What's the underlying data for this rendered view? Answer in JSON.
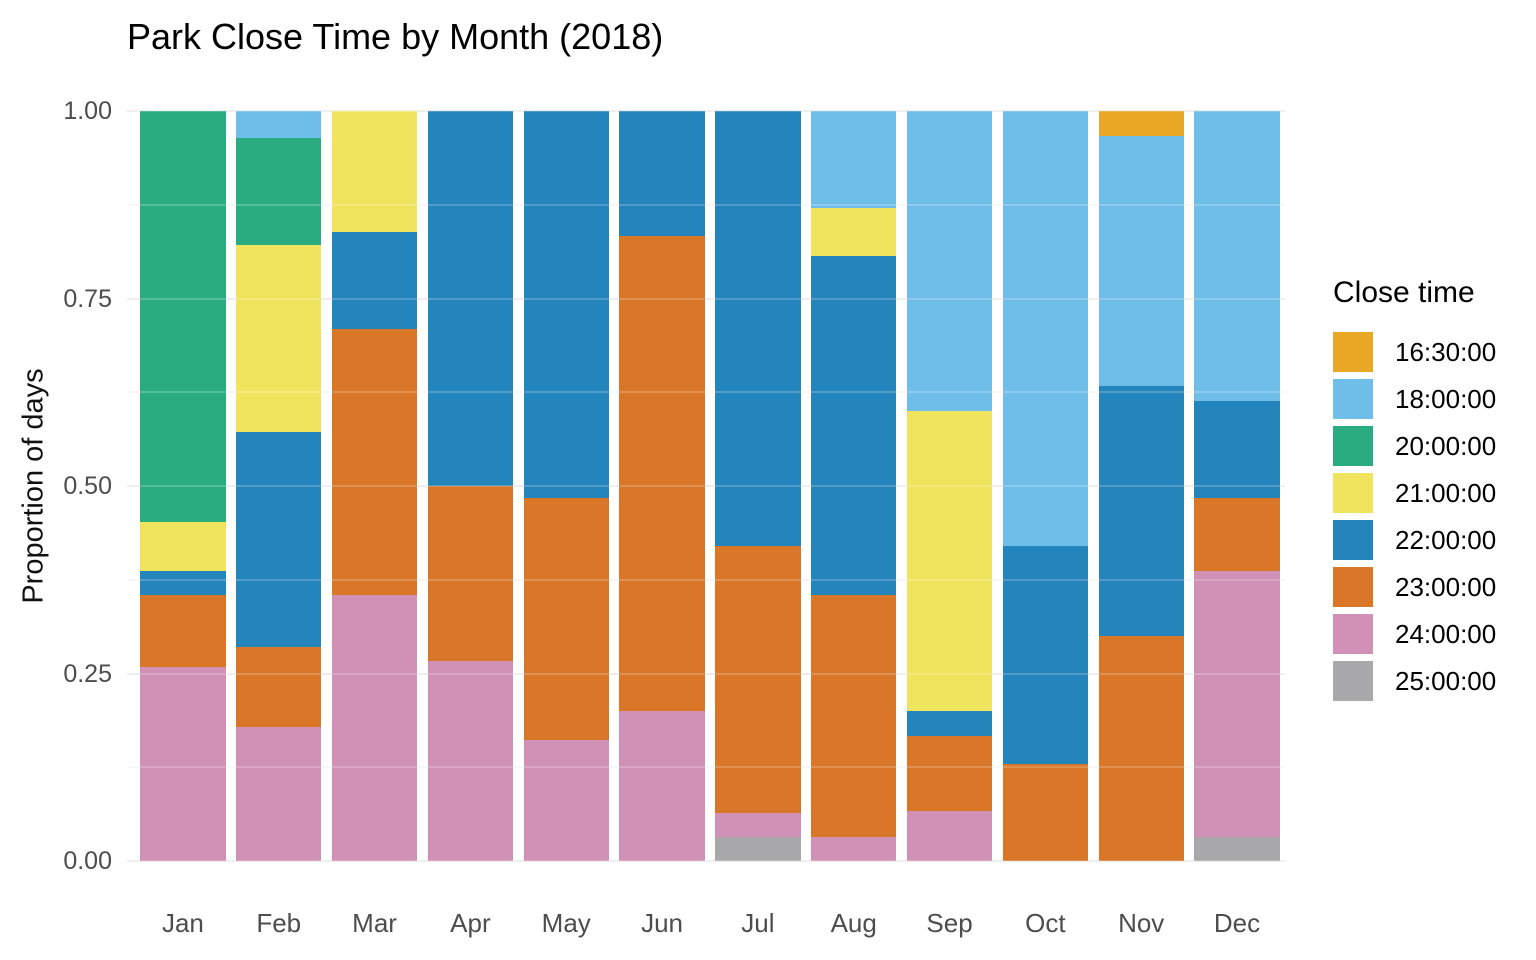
{
  "title": "Park Close Time by Month (2018)",
  "y_axis": {
    "label": "Proportion of days",
    "ticks": [
      {
        "value": 1.0,
        "label": "1.00"
      },
      {
        "value": 0.75,
        "label": "0.75"
      },
      {
        "value": 0.5,
        "label": "0.50"
      },
      {
        "value": 0.25,
        "label": "0.25"
      },
      {
        "value": 0.0,
        "label": "0.00"
      }
    ]
  },
  "legend": {
    "title": "Close time",
    "position": "right"
  },
  "chart_data": {
    "type": "bar",
    "variant": "stacked-normalized",
    "title": "Park Close Time by Month (2018)",
    "xlabel": "",
    "ylabel": "Proportion of days",
    "ylim": [
      0,
      1
    ],
    "grid": {
      "major": [
        0,
        0.25,
        0.5,
        0.75,
        1.0
      ],
      "minor": [
        0.125,
        0.375,
        0.625,
        0.875
      ]
    },
    "legend_position": "right",
    "values_unit": "days (proportion shown = days / days in month)",
    "categories": [
      "Jan",
      "Feb",
      "Mar",
      "Apr",
      "May",
      "Jun",
      "Jul",
      "Aug",
      "Sep",
      "Oct",
      "Nov",
      "Dec"
    ],
    "month_totals": [
      31,
      28,
      31,
      30,
      31,
      30,
      31,
      31,
      30,
      31,
      30,
      31
    ],
    "series": [
      {
        "name": "16:30:00",
        "color": "#E8A825",
        "values": [
          0,
          0,
          0,
          0,
          0,
          0,
          0,
          0,
          0,
          0,
          1,
          0
        ]
      },
      {
        "name": "18:00:00",
        "color": "#6FBEE9",
        "values": [
          0,
          1,
          0,
          0,
          0,
          0,
          0,
          4,
          12,
          18,
          10,
          12
        ]
      },
      {
        "name": "20:00:00",
        "color": "#2BAC80",
        "values": [
          17,
          4,
          0,
          0,
          0,
          0,
          0,
          0,
          0,
          0,
          0,
          0
        ]
      },
      {
        "name": "21:00:00",
        "color": "#F0E45E",
        "values": [
          2,
          7,
          5,
          0,
          0,
          0,
          0,
          2,
          12,
          0,
          0,
          0
        ]
      },
      {
        "name": "22:00:00",
        "color": "#2484BC",
        "values": [
          1,
          8,
          4,
          15,
          16,
          5,
          18,
          14,
          1,
          9,
          10,
          4
        ]
      },
      {
        "name": "23:00:00",
        "color": "#D97627",
        "values": [
          3,
          3,
          11,
          7,
          10,
          19,
          11,
          10,
          3,
          4,
          9,
          3
        ]
      },
      {
        "name": "24:00:00",
        "color": "#D190B5",
        "values": [
          8,
          5,
          11,
          8,
          5,
          6,
          1,
          1,
          2,
          0,
          0,
          11
        ]
      },
      {
        "name": "25:00:00",
        "color": "#A8A8AA",
        "values": [
          0,
          0,
          0,
          0,
          0,
          0,
          1,
          0,
          0,
          0,
          0,
          1
        ]
      }
    ]
  }
}
